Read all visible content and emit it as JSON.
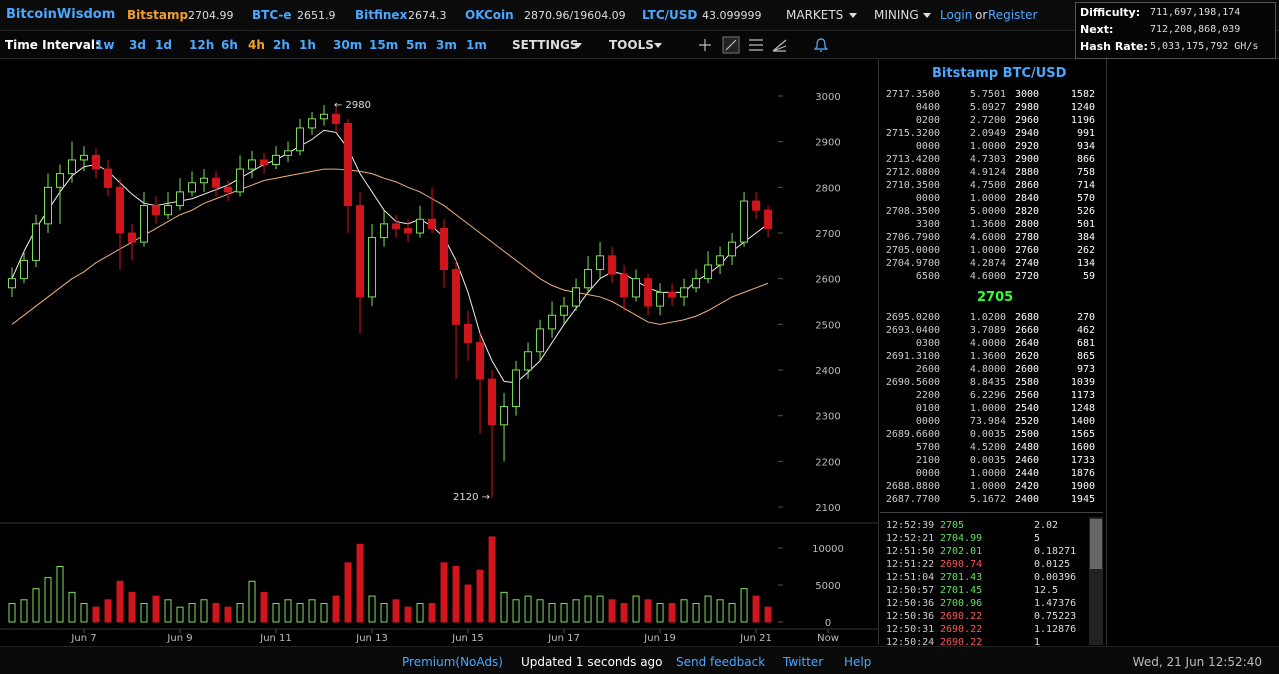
{
  "header": {
    "brand": "BitcoinWisdom",
    "tickers": [
      {
        "name": "Bitstamp",
        "price": "2704.99"
      },
      {
        "name": "BTC-e",
        "price": "2651.9"
      },
      {
        "name": "Bitfinex",
        "price": "2674.3"
      },
      {
        "name": "OKCoin",
        "price": "2870.96/19604.09"
      },
      {
        "name": "LTC/USD",
        "price": "43.099999"
      }
    ],
    "menus": [
      "MARKETS",
      "MINING"
    ],
    "login": "Login",
    "or": "or",
    "register": "Register"
  },
  "difficulty": [
    {
      "label": "Difficulty:",
      "value": "711,697,198,174"
    },
    {
      "label": "Next:",
      "value": "712,208,868,039"
    },
    {
      "label": "Hash Rate:",
      "value": "5,033,175,792 GH/s"
    }
  ],
  "toolbar": {
    "label": "Time Interval:",
    "intervals": [
      "1w",
      "3d",
      "1d",
      "12h",
      "6h",
      "4h",
      "2h",
      "1h",
      "30m",
      "15m",
      "5m",
      "3m",
      "1m"
    ],
    "active_interval": 5,
    "settings": "SETTINGS",
    "tools": "TOOLS"
  },
  "chart_data": {
    "type": "candlestick",
    "up_color": "#7ee05a",
    "down_color": "#d0161c",
    "xlim": [
      5.25,
      23.54
    ],
    "xticks": [
      {
        "value": 7,
        "label": "Jun 7"
      },
      {
        "value": 9,
        "label": "Jun 9"
      },
      {
        "value": 11,
        "label": "Jun 11"
      },
      {
        "value": 13,
        "label": "Jun 13"
      },
      {
        "value": 15,
        "label": "Jun 15"
      },
      {
        "value": 17,
        "label": "Jun 17"
      },
      {
        "value": 19,
        "label": "Jun 19"
      },
      {
        "value": 21,
        "label": "Jun 21"
      },
      {
        "value": 22.5,
        "label": "Now"
      }
    ],
    "ylim": [
      2065,
      3081
    ],
    "yticks": [
      2100,
      2200,
      2300,
      2400,
      2500,
      2600,
      2700,
      2800,
      2900,
      3000
    ],
    "vol_ylim": [
      -950,
      13380
    ],
    "vol_yticks": [
      0,
      5000,
      10000
    ],
    "annotations": [
      "← 2980",
      "2120 →"
    ],
    "x": [
      5.5,
      5.75,
      6,
      6.25,
      6.5,
      6.75,
      7,
      7.25,
      7.5,
      7.75,
      8,
      8.25,
      8.5,
      8.75,
      9,
      9.25,
      9.5,
      9.75,
      10,
      10.25,
      10.5,
      10.75,
      11,
      11.25,
      11.5,
      11.75,
      12,
      12.25,
      12.5,
      12.75,
      13,
      13.25,
      13.5,
      13.75,
      14,
      14.25,
      14.5,
      14.75,
      15,
      15.25,
      15.5,
      15.75,
      16,
      16.25,
      16.5,
      16.75,
      17,
      17.25,
      17.5,
      17.75,
      18,
      18.25,
      18.5,
      18.75,
      19,
      19.25,
      19.5,
      19.75,
      20,
      20.25,
      20.5,
      20.75,
      21,
      21.25
    ],
    "candles": [
      [
        2580,
        2625,
        2560,
        2600
      ],
      [
        2600,
        2660,
        2590,
        2640
      ],
      [
        2640,
        2740,
        2625,
        2720
      ],
      [
        2720,
        2830,
        2700,
        2800
      ],
      [
        2800,
        2850,
        2720,
        2830
      ],
      [
        2830,
        2900,
        2810,
        2860
      ],
      [
        2860,
        2890,
        2835,
        2870
      ],
      [
        2870,
        2885,
        2820,
        2840
      ],
      [
        2840,
        2860,
        2780,
        2800
      ],
      [
        2800,
        2820,
        2620,
        2700
      ],
      [
        2700,
        2720,
        2640,
        2680
      ],
      [
        2680,
        2790,
        2670,
        2760
      ],
      [
        2760,
        2780,
        2720,
        2740
      ],
      [
        2740,
        2790,
        2730,
        2760
      ],
      [
        2760,
        2820,
        2750,
        2790
      ],
      [
        2790,
        2835,
        2780,
        2810
      ],
      [
        2810,
        2840,
        2790,
        2820
      ],
      [
        2820,
        2835,
        2780,
        2800
      ],
      [
        2800,
        2815,
        2770,
        2790
      ],
      [
        2790,
        2870,
        2780,
        2840
      ],
      [
        2840,
        2880,
        2820,
        2860
      ],
      [
        2860,
        2875,
        2830,
        2850
      ],
      [
        2850,
        2890,
        2840,
        2870
      ],
      [
        2870,
        2900,
        2855,
        2880
      ],
      [
        2880,
        2950,
        2870,
        2930
      ],
      [
        2930,
        2965,
        2915,
        2950
      ],
      [
        2950,
        2980,
        2935,
        2960
      ],
      [
        2960,
        2975,
        2920,
        2940
      ],
      [
        2940,
        2950,
        2700,
        2760
      ],
      [
        2760,
        2790,
        2480,
        2560
      ],
      [
        2560,
        2720,
        2540,
        2690
      ],
      [
        2690,
        2750,
        2670,
        2720
      ],
      [
        2720,
        2740,
        2690,
        2710
      ],
      [
        2710,
        2730,
        2680,
        2700
      ],
      [
        2700,
        2760,
        2690,
        2730
      ],
      [
        2730,
        2800,
        2700,
        2710
      ],
      [
        2710,
        2730,
        2580,
        2620
      ],
      [
        2620,
        2640,
        2380,
        2500
      ],
      [
        2500,
        2530,
        2420,
        2460
      ],
      [
        2460,
        2480,
        2260,
        2380
      ],
      [
        2380,
        2400,
        2120,
        2280
      ],
      [
        2280,
        2350,
        2200,
        2320
      ],
      [
        2320,
        2420,
        2300,
        2400
      ],
      [
        2400,
        2460,
        2380,
        2440
      ],
      [
        2440,
        2510,
        2420,
        2490
      ],
      [
        2490,
        2550,
        2470,
        2520
      ],
      [
        2520,
        2560,
        2500,
        2540
      ],
      [
        2540,
        2600,
        2530,
        2580
      ],
      [
        2580,
        2650,
        2570,
        2620
      ],
      [
        2620,
        2680,
        2600,
        2650
      ],
      [
        2650,
        2670,
        2590,
        2610
      ],
      [
        2610,
        2630,
        2530,
        2560
      ],
      [
        2560,
        2620,
        2550,
        2600
      ],
      [
        2600,
        2610,
        2520,
        2540
      ],
      [
        2540,
        2590,
        2520,
        2570
      ],
      [
        2570,
        2590,
        2540,
        2560
      ],
      [
        2560,
        2600,
        2540,
        2580
      ],
      [
        2580,
        2620,
        2570,
        2600
      ],
      [
        2600,
        2660,
        2590,
        2630
      ],
      [
        2630,
        2670,
        2610,
        2650
      ],
      [
        2650,
        2700,
        2630,
        2680
      ],
      [
        2680,
        2790,
        2670,
        2770
      ],
      [
        2770,
        2790,
        2730,
        2750
      ],
      [
        2750,
        2760,
        2690,
        2710
      ]
    ],
    "volumes": [
      2500,
      3000,
      4500,
      6000,
      7500,
      4000,
      2500,
      2000,
      3000,
      5500,
      4000,
      2500,
      3500,
      3000,
      2000,
      2500,
      3000,
      2500,
      2000,
      2500,
      5500,
      4000,
      2500,
      3000,
      2500,
      3000,
      2500,
      3500,
      8000,
      10500,
      3500,
      2500,
      3000,
      2000,
      2500,
      2500,
      8000,
      7500,
      5000,
      7000,
      11500,
      4000,
      3000,
      3500,
      3000,
      2500,
      2500,
      3000,
      3500,
      3500,
      3000,
      2500,
      3500,
      3000,
      2500,
      2500,
      3000,
      2500,
      3500,
      3000,
      2500,
      4500,
      3500,
      2000
    ],
    "series": [
      {
        "color": "#f2f2f2",
        "values": [
          2600,
          2660,
          2710,
          2750,
          2790,
          2825,
          2845,
          2850,
          2835,
          2810,
          2785,
          2765,
          2760,
          2765,
          2770,
          2775,
          2785,
          2795,
          2805,
          2820,
          2835,
          2850,
          2860,
          2875,
          2890,
          2905,
          2925,
          2920,
          2885,
          2830,
          2790,
          2750,
          2725,
          2720,
          2730,
          2715,
          2690,
          2640,
          2570,
          2480,
          2420,
          2375,
          2372,
          2395,
          2420,
          2460,
          2500,
          2535,
          2570,
          2600,
          2615,
          2610,
          2595,
          2580,
          2570,
          2570,
          2570,
          2595,
          2610,
          2630,
          2660,
          2680,
          2700,
          2720
        ]
      },
      {
        "color": "#f0b27a",
        "values": [
          2500,
          2520,
          2540,
          2560,
          2580,
          2600,
          2615,
          2635,
          2650,
          2665,
          2680,
          2695,
          2710,
          2725,
          2740,
          2750,
          2765,
          2775,
          2785,
          2795,
          2805,
          2815,
          2820,
          2825,
          2830,
          2835,
          2840,
          2840,
          2838,
          2835,
          2830,
          2820,
          2812,
          2800,
          2790,
          2775,
          2760,
          2740,
          2720,
          2700,
          2680,
          2660,
          2640,
          2620,
          2600,
          2585,
          2575,
          2570,
          2565,
          2560,
          2550,
          2535,
          2520,
          2505,
          2500,
          2505,
          2510,
          2518,
          2530,
          2545,
          2560,
          2570,
          2580,
          2590
        ]
      }
    ]
  },
  "order_book": {
    "title": "Bitstamp BTC/USD",
    "asks": [
      [
        "2717.3500",
        "5.7501",
        "3000",
        "1582"
      ],
      [
        "0400",
        "5.0927",
        "2980",
        "1240"
      ],
      [
        "0200",
        "2.7200",
        "2960",
        "1196"
      ],
      [
        "2715.3200",
        "2.0949",
        "2940",
        "991"
      ],
      [
        "0000",
        "1.0000",
        "2920",
        "934"
      ],
      [
        "2713.4200",
        "4.7303",
        "2900",
        "866"
      ],
      [
        "2712.0800",
        "4.9124",
        "2880",
        "758"
      ],
      [
        "2710.3500",
        "4.7500",
        "2860",
        "714"
      ],
      [
        "0000",
        "1.0000",
        "2840",
        "570"
      ],
      [
        "2708.3500",
        "5.0000",
        "2820",
        "526"
      ],
      [
        "3300",
        "1.3600",
        "2800",
        "501"
      ],
      [
        "2706.7900",
        "4.6000",
        "2780",
        "384"
      ],
      [
        "2705.0000",
        "1.0000",
        "2760",
        "262"
      ],
      [
        "2704.9700",
        "4.2874",
        "2740",
        "134"
      ],
      [
        "6500",
        "4.6000",
        "2720",
        "59"
      ]
    ],
    "last": "2705",
    "bids": [
      [
        "2695.0200",
        "1.0200",
        "2680",
        "270"
      ],
      [
        "2693.0400",
        "3.7089",
        "2660",
        "462"
      ],
      [
        "0300",
        "4.0000",
        "2640",
        "681"
      ],
      [
        "2691.3100",
        "1.3600",
        "2620",
        "865"
      ],
      [
        "2600",
        "4.8000",
        "2600",
        "973"
      ],
      [
        "2690.5600",
        "8.8435",
        "2580",
        "1039"
      ],
      [
        "2200",
        "6.2296",
        "2560",
        "1173"
      ],
      [
        "0100",
        "1.0000",
        "2540",
        "1248"
      ],
      [
        "0000",
        "73.984",
        "2520",
        "1400"
      ],
      [
        "2689.6600",
        "0.0035",
        "2500",
        "1565"
      ],
      [
        "5700",
        "4.5200",
        "2480",
        "1600"
      ],
      [
        "2100",
        "0.0035",
        "2460",
        "1733"
      ],
      [
        "0000",
        "1.0000",
        "2440",
        "1876"
      ],
      [
        "2688.8800",
        "1.0000",
        "2420",
        "1900"
      ],
      [
        "2687.7700",
        "5.1672",
        "2400",
        "1945"
      ]
    ]
  },
  "trades": [
    {
      "time": "12:52:39",
      "price": "2705",
      "amount": "2.02",
      "color": "#5fe05f"
    },
    {
      "time": "12:52:21",
      "price": "2704.99",
      "amount": "5",
      "color": "#5fe05f"
    },
    {
      "time": "12:51:50",
      "price": "2702.01",
      "amount": "0.18271",
      "color": "#5fe05f"
    },
    {
      "time": "12:51:22",
      "price": "2690.74",
      "amount": "0.0125",
      "color": "#ff5555"
    },
    {
      "time": "12:51:04",
      "price": "2701.43",
      "amount": "0.00396",
      "color": "#5fe05f"
    },
    {
      "time": "12:50:57",
      "price": "2701.45",
      "amount": "12.5",
      "color": "#5fe05f"
    },
    {
      "time": "12:50:36",
      "price": "2700.96",
      "amount": "1.47376",
      "color": "#5fe05f"
    },
    {
      "time": "12:50:36",
      "price": "2690.22",
      "amount": "0.75223",
      "color": "#ff5555"
    },
    {
      "time": "12:50:31",
      "price": "2690.22",
      "amount": "1.12876",
      "color": "#ff5555"
    },
    {
      "time": "12:50:24",
      "price": "2690.22",
      "amount": "1",
      "color": "#ff5555"
    }
  ],
  "footer": {
    "premium": "Premium(NoAds)",
    "updated": "Updated 1 seconds ago",
    "feedback": "Send feedback",
    "twitter": "Twitter",
    "help": "Help",
    "datetime": "Wed, 21 Jun 12:52:40"
  }
}
